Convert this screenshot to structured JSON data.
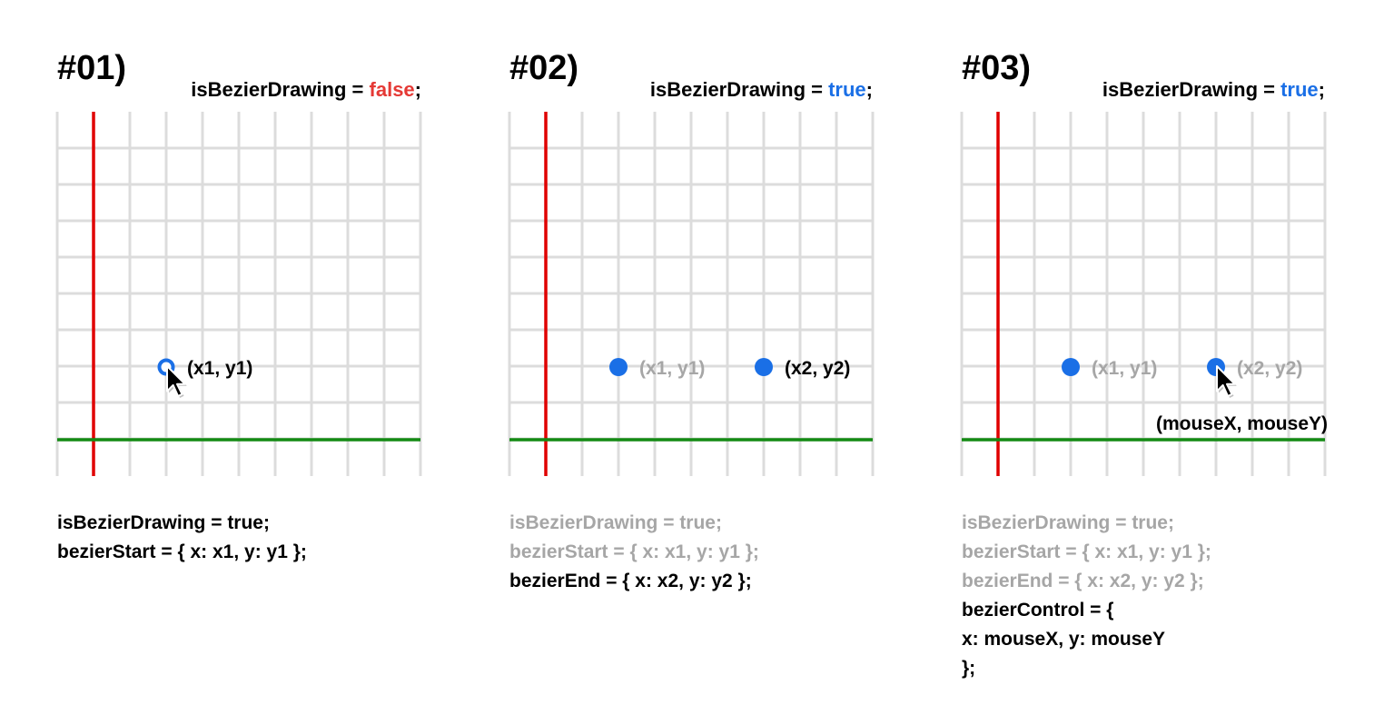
{
  "colors": {
    "grid": "#dcdcdc",
    "y_axis": "#e00000",
    "x_axis": "#138a13",
    "point": "#1a6fe6",
    "false_value": "#e53935",
    "true_value": "#1a6fe6",
    "active_text": "#000000",
    "faded_text": "#a6a6a6"
  },
  "panels": [
    {
      "title": "#01)",
      "flag": {
        "prefix": "isBezierDrawing = ",
        "value": "false",
        "value_state": "false",
        "suffix": ";"
      },
      "points": [
        {
          "label": "(x1, y1)",
          "style": "hollow",
          "label_state": "active",
          "cursor": true
        }
      ],
      "cursor_label": "",
      "code": [
        {
          "text": "isBezierDrawing = true;",
          "state": "active"
        },
        {
          "text": "bezierStart = { x: x1, y: y1 };",
          "state": "active"
        }
      ]
    },
    {
      "title": "#02)",
      "flag": {
        "prefix": "isBezierDrawing = ",
        "value": "true",
        "value_state": "true",
        "suffix": ";"
      },
      "points": [
        {
          "label": "(x1, y1)",
          "style": "filled",
          "label_state": "faded",
          "cursor": false
        },
        {
          "label": "(x2, y2)",
          "style": "filled",
          "label_state": "active",
          "cursor": false
        }
      ],
      "cursor_label": "",
      "code": [
        {
          "text": "isBezierDrawing = true;",
          "state": "faded"
        },
        {
          "text": "bezierStart = { x: x1, y: y1 };",
          "state": "faded"
        },
        {
          "text": "bezierEnd = { x: x2, y: y2 };",
          "state": "active"
        }
      ]
    },
    {
      "title": "#03)",
      "flag": {
        "prefix": "isBezierDrawing = ",
        "value": "true",
        "value_state": "true",
        "suffix": ";"
      },
      "points": [
        {
          "label": "(x1, y1)",
          "style": "filled",
          "label_state": "faded",
          "cursor": false
        },
        {
          "label": "(x2, y2)",
          "style": "filled",
          "label_state": "faded",
          "cursor": true
        }
      ],
      "cursor_label": "(mouseX, mouseY)",
      "code": [
        {
          "text": "isBezierDrawing = true;",
          "state": "faded"
        },
        {
          "text": "bezierStart = { x: x1, y: y1 };",
          "state": "faded"
        },
        {
          "text": "bezierEnd = { x: x2, y: y2 };",
          "state": "faded"
        },
        {
          "text": "bezierControl = {",
          "state": "active"
        },
        {
          "text": "  x: mouseX, y: mouseY",
          "state": "active"
        },
        {
          "text": "};",
          "state": "active"
        }
      ]
    }
  ]
}
